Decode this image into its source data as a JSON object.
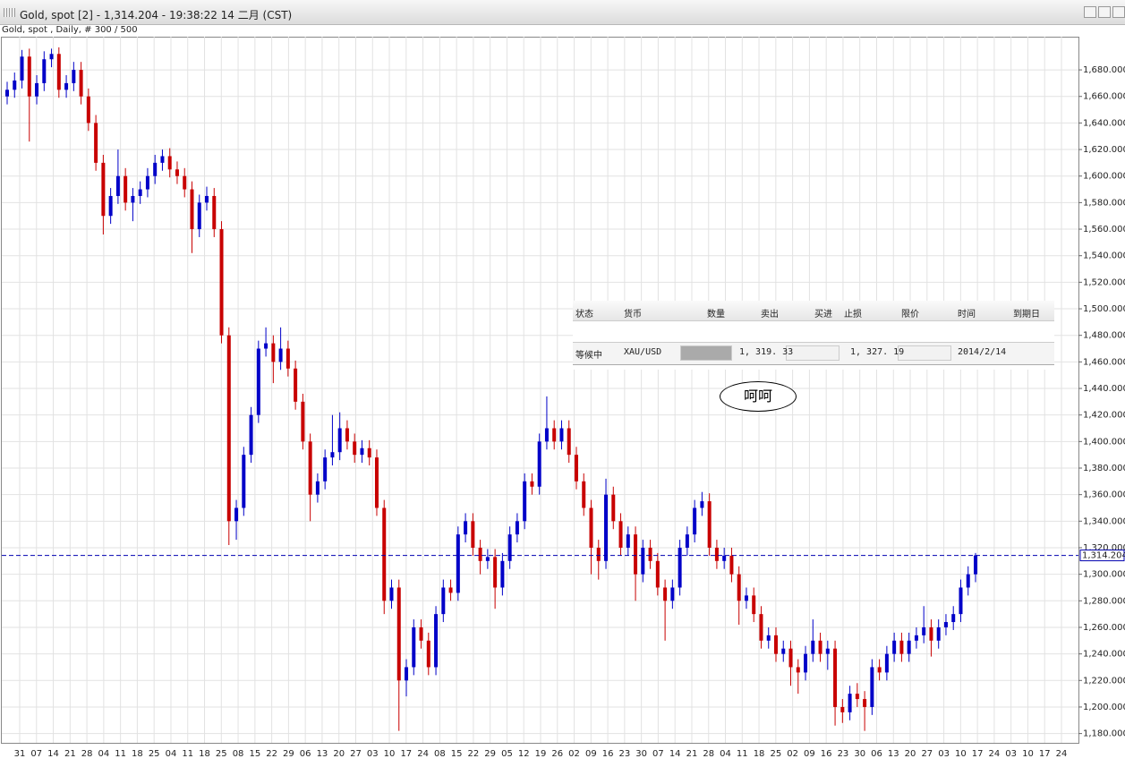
{
  "window": {
    "title": "Gold, spot [2] - 1,314.204 - 19:38:22  14 二月 (CST)"
  },
  "chart_data": {
    "type": "candlestick",
    "title": "Gold, spot , Daily, # 300 / 500",
    "up_color": "#0000c8",
    "down_color": "#c80000",
    "grid": true,
    "ylim": [
      1173,
      1705
    ],
    "yticks": [
      {
        "value": 1180,
        "label": "1,180.000"
      },
      {
        "value": 1200,
        "label": "1,200.000"
      },
      {
        "value": 1220,
        "label": "1,220.000"
      },
      {
        "value": 1240,
        "label": "1,240.000"
      },
      {
        "value": 1260,
        "label": "1,260.000"
      },
      {
        "value": 1280,
        "label": "1,280.000"
      },
      {
        "value": 1300,
        "label": "1,300.000"
      },
      {
        "value": 1320,
        "label": "1,320.000"
      },
      {
        "value": 1340,
        "label": "1,340.000"
      },
      {
        "value": 1360,
        "label": "1,360.000"
      },
      {
        "value": 1380,
        "label": "1,380.000"
      },
      {
        "value": 1400,
        "label": "1,400.000"
      },
      {
        "value": 1420,
        "label": "1,420.000"
      },
      {
        "value": 1440,
        "label": "1,440.000"
      },
      {
        "value": 1460,
        "label": "1,460.000"
      },
      {
        "value": 1480,
        "label": "1,480.000"
      },
      {
        "value": 1500,
        "label": "1,500.000"
      },
      {
        "value": 1520,
        "label": "1,520.000"
      },
      {
        "value": 1540,
        "label": "1,540.000"
      },
      {
        "value": 1560,
        "label": "1,560.000"
      },
      {
        "value": 1580,
        "label": "1,580.000"
      },
      {
        "value": 1600,
        "label": "1,600.000"
      },
      {
        "value": 1620,
        "label": "1,620.000"
      },
      {
        "value": 1640,
        "label": "1,640.000"
      },
      {
        "value": 1660,
        "label": "1,660.000"
      },
      {
        "value": 1680,
        "label": "1,680.000"
      }
    ],
    "x_labels": [
      "31",
      "07",
      "14",
      "21",
      "28",
      "04",
      "11",
      "18",
      "25",
      "04",
      "11",
      "18",
      "25",
      "08",
      "15",
      "22",
      "29",
      "06",
      "13",
      "20",
      "27",
      "03",
      "10",
      "17",
      "24",
      "08",
      "15",
      "22",
      "29",
      "05",
      "12",
      "19",
      "26",
      "02",
      "09",
      "16",
      "23",
      "30",
      "07",
      "14",
      "21",
      "28",
      "04",
      "11",
      "18",
      "25",
      "02",
      "09",
      "16",
      "23",
      "30",
      "06",
      "13",
      "20",
      "27",
      "03",
      "10",
      "17",
      "24",
      "03",
      "10",
      "17",
      "24"
    ],
    "last_price": {
      "value": 1314.204,
      "label": "1,314.204"
    },
    "annotation": "呵呵",
    "open": [
      1660,
      1665,
      1672,
      1690,
      1660,
      1670,
      1688,
      1692,
      1665,
      1670,
      1680,
      1660,
      1640,
      1610,
      1570,
      1585,
      1600,
      1580,
      1585,
      1590,
      1600,
      1610,
      1615,
      1605,
      1600,
      1590,
      1560,
      1580,
      1585,
      1560,
      1480,
      1340,
      1350,
      1390,
      1420,
      1470,
      1474,
      1460,
      1470,
      1455,
      1430,
      1400,
      1360,
      1370,
      1388,
      1392,
      1410,
      1400,
      1390,
      1395,
      1388,
      1350,
      1280,
      1290,
      1220,
      1230,
      1260,
      1250,
      1230,
      1270,
      1290,
      1286,
      1330,
      1340,
      1320,
      1310,
      1313,
      1290,
      1310,
      1330,
      1340,
      1370,
      1366,
      1400,
      1410,
      1400,
      1410,
      1390,
      1370,
      1350,
      1320,
      1310,
      1360,
      1340,
      1320,
      1330,
      1300,
      1320,
      1310,
      1290,
      1280,
      1290,
      1320,
      1330,
      1350,
      1355,
      1320,
      1310,
      1314,
      1300,
      1280,
      1284,
      1270,
      1250,
      1254,
      1240,
      1244,
      1230,
      1226,
      1240,
      1250,
      1240,
      1244,
      1200,
      1196,
      1210,
      1206,
      1200,
      1230,
      1226,
      1240,
      1250,
      1240,
      1250,
      1254,
      1260,
      1250,
      1260,
      1264,
      1270,
      1290,
      1300
    ],
    "high": [
      1671,
      1678,
      1695,
      1696,
      1676,
      1694,
      1696,
      1697,
      1676,
      1686,
      1686,
      1666,
      1646,
      1616,
      1591,
      1620,
      1606,
      1591,
      1596,
      1606,
      1616,
      1620,
      1621,
      1611,
      1606,
      1596,
      1586,
      1592,
      1591,
      1566,
      1486,
      1356,
      1396,
      1426,
      1476,
      1486,
      1480,
      1486,
      1476,
      1461,
      1436,
      1406,
      1376,
      1394,
      1420,
      1422,
      1416,
      1406,
      1401,
      1401,
      1394,
      1356,
      1296,
      1296,
      1236,
      1266,
      1266,
      1256,
      1276,
      1296,
      1296,
      1336,
      1346,
      1346,
      1326,
      1319,
      1319,
      1316,
      1336,
      1346,
      1376,
      1376,
      1406,
      1434,
      1416,
      1416,
      1416,
      1396,
      1376,
      1356,
      1326,
      1372,
      1366,
      1346,
      1336,
      1336,
      1326,
      1326,
      1316,
      1296,
      1296,
      1326,
      1336,
      1356,
      1362,
      1361,
      1326,
      1320,
      1320,
      1306,
      1290,
      1290,
      1276,
      1260,
      1260,
      1250,
      1250,
      1236,
      1246,
      1266,
      1256,
      1250,
      1250,
      1206,
      1216,
      1218,
      1212,
      1236,
      1236,
      1246,
      1256,
      1256,
      1256,
      1260,
      1276,
      1266,
      1266,
      1270,
      1276,
      1296,
      1306,
      1316
    ],
    "low": [
      1654,
      1659,
      1666,
      1626,
      1654,
      1664,
      1682,
      1659,
      1659,
      1664,
      1654,
      1634,
      1604,
      1556,
      1564,
      1579,
      1574,
      1566,
      1579,
      1584,
      1594,
      1604,
      1599,
      1594,
      1584,
      1542,
      1554,
      1574,
      1554,
      1474,
      1322,
      1326,
      1344,
      1384,
      1414,
      1464,
      1444,
      1454,
      1449,
      1424,
      1394,
      1340,
      1354,
      1364,
      1382,
      1386,
      1394,
      1384,
      1384,
      1382,
      1344,
      1270,
      1274,
      1182,
      1208,
      1224,
      1244,
      1224,
      1224,
      1264,
      1280,
      1280,
      1324,
      1314,
      1300,
      1304,
      1274,
      1284,
      1304,
      1324,
      1334,
      1360,
      1360,
      1394,
      1394,
      1394,
      1384,
      1364,
      1344,
      1300,
      1296,
      1304,
      1334,
      1314,
      1314,
      1280,
      1294,
      1304,
      1284,
      1250,
      1274,
      1284,
      1314,
      1324,
      1344,
      1314,
      1304,
      1304,
      1294,
      1262,
      1274,
      1264,
      1244,
      1244,
      1234,
      1234,
      1216,
      1210,
      1220,
      1234,
      1234,
      1228,
      1186,
      1188,
      1190,
      1200,
      1182,
      1194,
      1220,
      1220,
      1234,
      1234,
      1234,
      1244,
      1248,
      1238,
      1244,
      1254,
      1258,
      1264,
      1284,
      1294
    ],
    "close": [
      1665,
      1672,
      1690,
      1660,
      1670,
      1688,
      1692,
      1665,
      1670,
      1680,
      1660,
      1640,
      1610,
      1570,
      1585,
      1600,
      1580,
      1585,
      1590,
      1600,
      1610,
      1615,
      1605,
      1600,
      1590,
      1560,
      1580,
      1585,
      1560,
      1480,
      1340,
      1350,
      1390,
      1420,
      1470,
      1474,
      1460,
      1470,
      1455,
      1430,
      1400,
      1360,
      1370,
      1388,
      1392,
      1410,
      1400,
      1390,
      1395,
      1388,
      1350,
      1280,
      1290,
      1220,
      1230,
      1260,
      1250,
      1230,
      1270,
      1290,
      1286,
      1330,
      1340,
      1320,
      1310,
      1313,
      1290,
      1310,
      1330,
      1340,
      1370,
      1366,
      1400,
      1410,
      1400,
      1410,
      1390,
      1370,
      1350,
      1320,
      1310,
      1360,
      1340,
      1320,
      1330,
      1300,
      1320,
      1310,
      1290,
      1280,
      1290,
      1320,
      1330,
      1350,
      1355,
      1320,
      1310,
      1314,
      1300,
      1280,
      1284,
      1270,
      1250,
      1254,
      1240,
      1244,
      1230,
      1226,
      1240,
      1250,
      1240,
      1244,
      1200,
      1196,
      1210,
      1206,
      1200,
      1230,
      1226,
      1240,
      1250,
      1240,
      1250,
      1254,
      1260,
      1250,
      1260,
      1264,
      1270,
      1290,
      1300,
      1314.204
    ]
  },
  "order_panel": {
    "headers": [
      "状态",
      "货币",
      "数量",
      "卖出",
      "买进",
      "止损",
      "限价",
      "时间",
      "到期日"
    ],
    "row": [
      "等候中",
      "XAU/USD",
      "1, 319. 33",
      "1, 327. 19",
      "2014/2/14"
    ]
  }
}
